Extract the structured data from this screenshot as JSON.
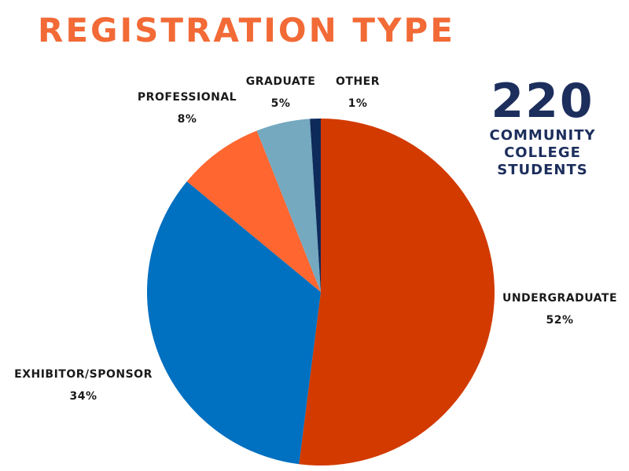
{
  "chart_data": {
    "type": "pie",
    "title": "REGISTRATION TYPE",
    "slices": [
      {
        "label": "UNDERGRADUATE",
        "value": 52,
        "value_label": "52%",
        "color": "#d23a00"
      },
      {
        "label": "EXHIBITOR/SPONSOR",
        "value": 34,
        "value_label": "34%",
        "color": "#0070c0"
      },
      {
        "label": "PROFESSIONAL",
        "value": 8,
        "value_label": "8%",
        "color": "#ff6630"
      },
      {
        "label": "GRADUATE",
        "value": 5,
        "value_label": "5%",
        "color": "#74a9c0"
      },
      {
        "label": "OTHER",
        "value": 1,
        "value_label": "1%",
        "color": "#0d2a5a"
      }
    ],
    "start": "12 o'clock",
    "direction": "clockwise",
    "legend": "none"
  },
  "callout": {
    "number": "220",
    "caption_lines": [
      "COMMUNITY",
      "COLLEGE",
      "STUDENTS"
    ],
    "color": "#1c2e5c"
  },
  "colors": {
    "title": "#f26a36"
  }
}
